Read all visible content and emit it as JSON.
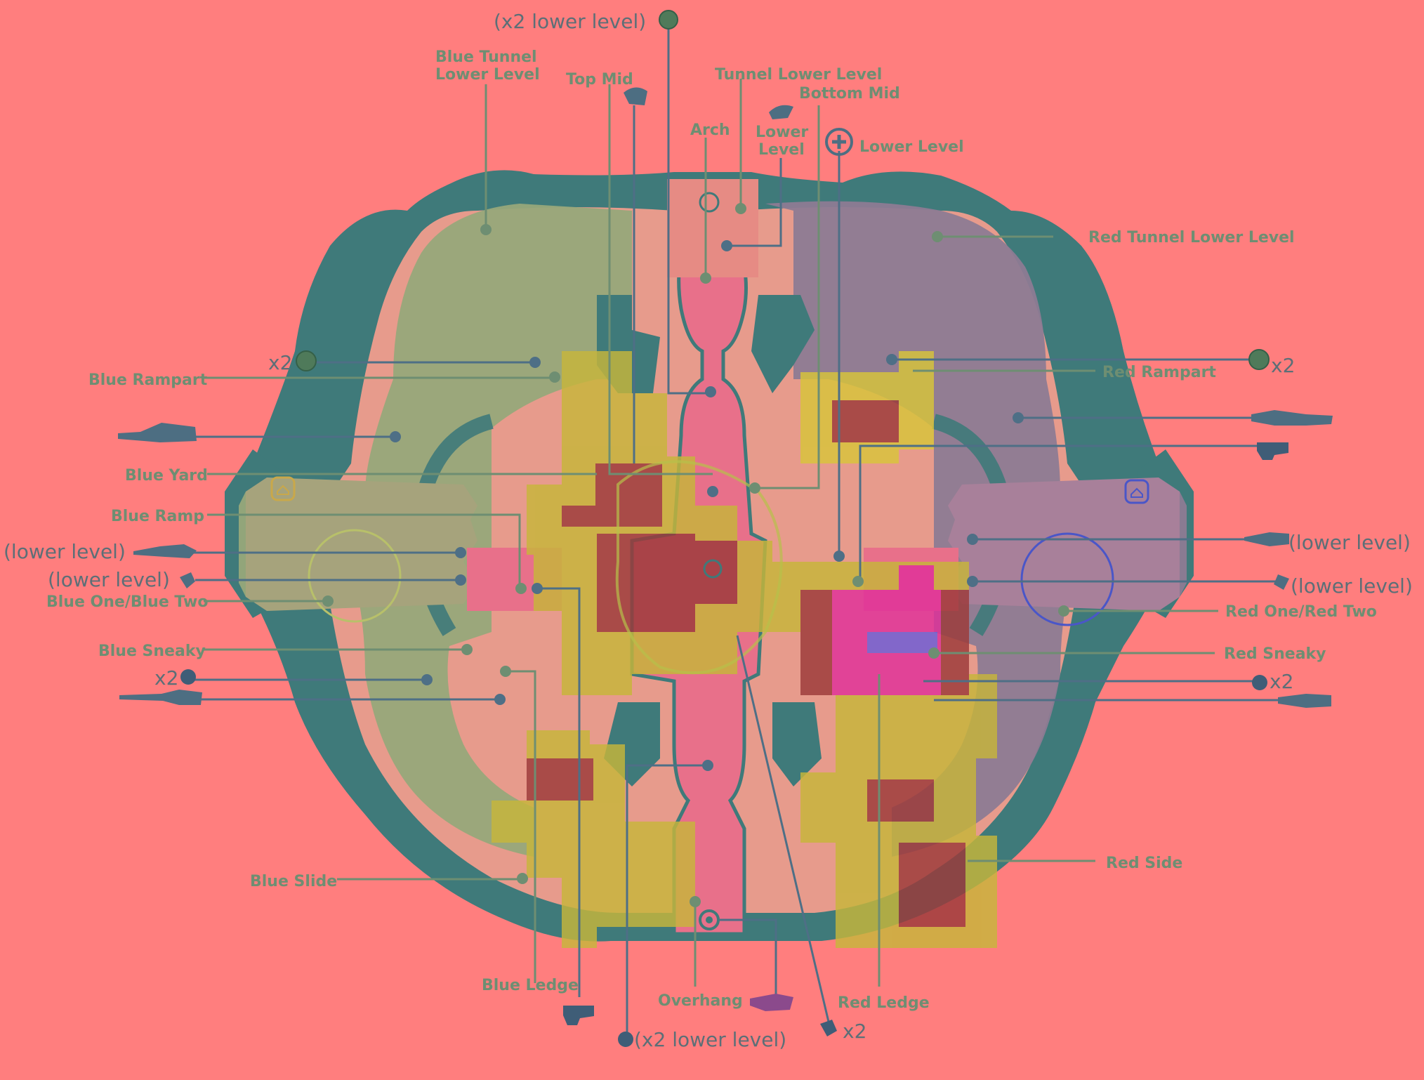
{
  "labels": {
    "x2_lower_level_top": "(x2 lower level)",
    "blue_tunnel_lower": "Blue Tunnel\nLower Level",
    "blue_tunnel_lower_1": "Blue Tunnel",
    "blue_tunnel_lower_2": "Lower Level",
    "top_mid": "Top Mid",
    "tunnel_lower_level": "Tunnel Lower Level",
    "bottom_mid": "Bottom Mid",
    "arch": "Arch",
    "lower_level_a_1": "Lower",
    "lower_level_a_2": "Level",
    "lower_level_b": "Lower Level",
    "red_tunnel_lower": "Red Tunnel Lower Level",
    "x2_left": "x2",
    "x2_right": "x2",
    "blue_rampart": "Blue Rampart",
    "red_rampart": "Red Rampart",
    "blue_yard": "Blue Yard",
    "blue_ramp": "Blue Ramp",
    "lower_level_left_1": "(lower level)",
    "lower_level_left_2": "(lower level)",
    "lower_level_right_1": "(lower level)",
    "lower_level_right_2": "(lower level)",
    "blue_one_two": "Blue One/Blue Two",
    "red_one_two": "Red One/Red Two",
    "blue_sneaky": "Blue Sneaky",
    "red_sneaky": "Red Sneaky",
    "x2_grenade_left": "x2",
    "x2_grenade_right": "x2",
    "blue_slide": "Blue Slide",
    "red_side": "Red Side",
    "blue_ledge": "Blue Ledge",
    "overhang": "Overhang",
    "red_ledge": "Red Ledge",
    "x2_bottom": "x2",
    "x2_lower_level_bottom": "(x2 lower level)"
  },
  "colors": {
    "background": "#ff7e7e",
    "map_outline": "#3f7a7a",
    "blue_zone": "#97a87a",
    "red_zone": "#8d7b93",
    "mid_path": "#e8708a",
    "heat_yellow": "#c7b63a",
    "heat_dark": "#9c3a3a",
    "heat_magenta": "#e0309a",
    "label": "#6e8e72"
  },
  "icons": [
    "grenade-icon",
    "plasma-rifle-icon",
    "shotgun-icon",
    "rocket-icon",
    "health-pack-icon",
    "spawn-home-icon",
    "sniper-icon",
    "needler-icon"
  ]
}
